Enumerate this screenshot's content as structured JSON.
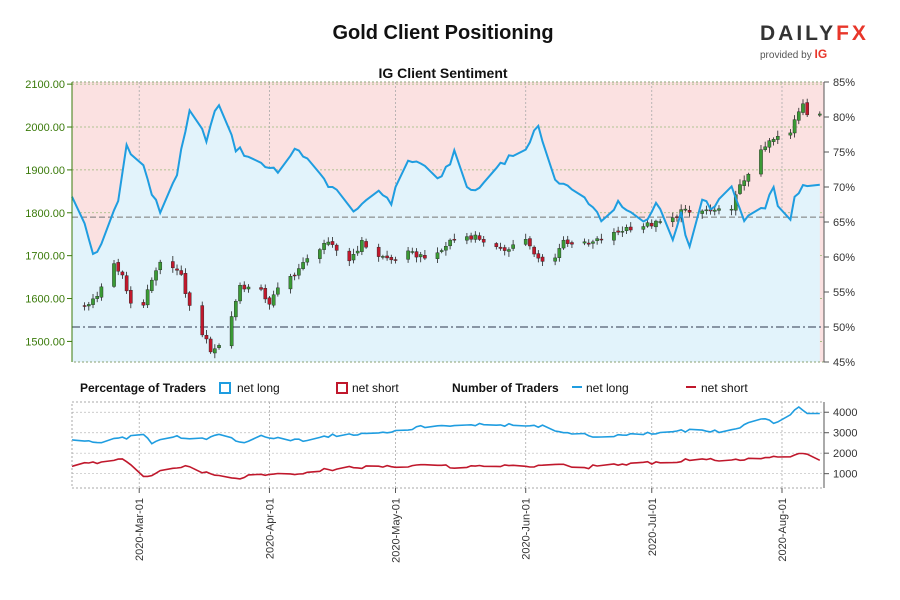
{
  "title": "Gold Client Positioning",
  "logo": {
    "word": "DAILY",
    "word_accent": "FX",
    "sub": "provided by",
    "badge": "IG"
  },
  "colors": {
    "net_long": "#1f9de0",
    "net_short": "#c0182c",
    "candle_up": "#3a9a35",
    "candle_down": "#c0182c",
    "price_axis": "#3a7a0a",
    "region_long": "#e2f3fb",
    "region_short": "#fbe1e1"
  },
  "chart_data": [
    {
      "type": "candlestick+line",
      "title": "IG Client Sentiment",
      "left_axis": {
        "ticks": [
          "1500.00",
          "1600.00",
          "1700.00",
          "1800.00",
          "1900.00",
          "2000.00",
          "2100.00"
        ],
        "range": [
          1452,
          2105
        ]
      },
      "right_axis": {
        "ticks": [
          "45%",
          "50%",
          "55%",
          "60%",
          "65%",
          "70%",
          "75%",
          "80%",
          "85%"
        ],
        "range": [
          45,
          85
        ]
      },
      "reference_lines": {
        "price": 1790,
        "percent": 50
      },
      "price_anchors": [
        [
          "2020-02-15",
          1578
        ],
        [
          "2020-02-18",
          1586
        ],
        [
          "2020-02-20",
          1612
        ],
        [
          "2020-02-22",
          1640
        ],
        [
          "2020-02-24",
          1680
        ],
        [
          "2020-02-26",
          1650
        ],
        [
          "2020-02-28",
          1590
        ],
        [
          "2020-03-02",
          1588
        ],
        [
          "2020-03-04",
          1640
        ],
        [
          "2020-03-06",
          1680
        ],
        [
          "2020-03-09",
          1678
        ],
        [
          "2020-03-11",
          1650
        ],
        [
          "2020-03-13",
          1580
        ],
        [
          "2020-03-16",
          1520
        ],
        [
          "2020-03-18",
          1480
        ],
        [
          "2020-03-20",
          1490
        ],
        [
          "2020-03-23",
          1560
        ],
        [
          "2020-03-25",
          1630
        ],
        [
          "2020-03-27",
          1625
        ],
        [
          "2020-03-30",
          1615
        ],
        [
          "2020-04-01",
          1590
        ],
        [
          "2020-04-03",
          1620
        ],
        [
          "2020-04-07",
          1660
        ],
        [
          "2020-04-10",
          1690
        ],
        [
          "2020-04-14",
          1730
        ],
        [
          "2020-04-16",
          1720
        ],
        [
          "2020-04-20",
          1690
        ],
        [
          "2020-04-23",
          1730
        ],
        [
          "2020-04-27",
          1700
        ],
        [
          "2020-04-30",
          1690
        ],
        [
          "2020-05-04",
          1705
        ],
        [
          "2020-05-07",
          1700
        ],
        [
          "2020-05-11",
          1700
        ],
        [
          "2020-05-14",
          1735
        ],
        [
          "2020-05-18",
          1745
        ],
        [
          "2020-05-20",
          1745
        ],
        [
          "2020-05-22",
          1735
        ],
        [
          "2020-05-26",
          1710
        ],
        [
          "2020-05-28",
          1720
        ],
        [
          "2020-06-01",
          1740
        ],
        [
          "2020-06-03",
          1700
        ],
        [
          "2020-06-05",
          1685
        ],
        [
          "2020-06-08",
          1700
        ],
        [
          "2020-06-10",
          1735
        ],
        [
          "2020-06-12",
          1730
        ],
        [
          "2020-06-16",
          1725
        ],
        [
          "2020-06-19",
          1740
        ],
        [
          "2020-06-22",
          1750
        ],
        [
          "2020-06-25",
          1765
        ],
        [
          "2020-06-29",
          1770
        ],
        [
          "2020-07-02",
          1775
        ],
        [
          "2020-07-06",
          1785
        ],
        [
          "2020-07-08",
          1805
        ],
        [
          "2020-07-10",
          1800
        ],
        [
          "2020-07-14",
          1805
        ],
        [
          "2020-07-16",
          1800
        ],
        [
          "2020-07-20",
          1815
        ],
        [
          "2020-07-22",
          1860
        ],
        [
          "2020-07-24",
          1895
        ],
        [
          "2020-07-27",
          1940
        ],
        [
          "2020-07-29",
          1965
        ],
        [
          "2020-07-31",
          1975
        ],
        [
          "2020-08-03",
          1985
        ],
        [
          "2020-08-04",
          2020
        ],
        [
          "2020-08-06",
          2060
        ],
        [
          "2020-08-07",
          2030
        ],
        [
          "2020-08-10",
          2025
        ]
      ],
      "net_long_pct_anchors": [
        [
          "2020-02-14",
          69.0
        ],
        [
          "2020-02-17",
          64.5
        ],
        [
          "2020-02-19",
          60.5
        ],
        [
          "2020-02-21",
          61.5
        ],
        [
          "2020-02-25",
          68.0
        ],
        [
          "2020-02-27",
          76.0
        ],
        [
          "2020-03-02",
          73.0
        ],
        [
          "2020-03-04",
          69.0
        ],
        [
          "2020-03-06",
          66.5
        ],
        [
          "2020-03-10",
          72.0
        ],
        [
          "2020-03-13",
          80.5
        ],
        [
          "2020-03-17",
          77.0
        ],
        [
          "2020-03-20",
          82.0
        ],
        [
          "2020-03-24",
          75.5
        ],
        [
          "2020-03-27",
          74.5
        ],
        [
          "2020-03-31",
          73.0
        ],
        [
          "2020-04-03",
          72.5
        ],
        [
          "2020-04-08",
          75.5
        ],
        [
          "2020-04-12",
          72.0
        ],
        [
          "2020-04-16",
          70.0
        ],
        [
          "2020-04-20",
          67.0
        ],
        [
          "2020-04-23",
          67.0
        ],
        [
          "2020-04-27",
          69.5
        ],
        [
          "2020-04-30",
          68.0
        ],
        [
          "2020-05-04",
          74.0
        ],
        [
          "2020-05-08",
          73.0
        ],
        [
          "2020-05-12",
          71.0
        ],
        [
          "2020-05-15",
          75.0
        ],
        [
          "2020-05-19",
          69.0
        ],
        [
          "2020-05-22",
          70.5
        ],
        [
          "2020-05-26",
          73.5
        ],
        [
          "2020-05-30",
          75.0
        ],
        [
          "2020-06-02",
          76.0
        ],
        [
          "2020-06-04",
          79.0
        ],
        [
          "2020-06-08",
          71.0
        ],
        [
          "2020-06-12",
          69.5
        ],
        [
          "2020-06-16",
          68.0
        ],
        [
          "2020-06-19",
          65.5
        ],
        [
          "2020-06-23",
          67.5
        ],
        [
          "2020-06-26",
          66.0
        ],
        [
          "2020-06-30",
          65.0
        ],
        [
          "2020-07-02",
          68.0
        ],
        [
          "2020-07-06",
          63.0
        ],
        [
          "2020-07-08",
          66.0
        ],
        [
          "2020-07-10",
          61.0
        ],
        [
          "2020-07-13",
          68.0
        ],
        [
          "2020-07-16",
          67.0
        ],
        [
          "2020-07-20",
          70.0
        ],
        [
          "2020-07-23",
          65.0
        ],
        [
          "2020-07-27",
          66.5
        ],
        [
          "2020-07-30",
          69.5
        ],
        [
          "2020-08-02",
          63.5
        ],
        [
          "2020-08-04",
          68.0
        ],
        [
          "2020-08-06",
          70.0
        ],
        [
          "2020-08-10",
          70.0
        ]
      ]
    },
    {
      "type": "line",
      "title": "",
      "right_axis": {
        "ticks": [
          "1000",
          "2000",
          "3000",
          "4000"
        ],
        "range": [
          300,
          4500
        ]
      },
      "x_ticks": [
        "2020-Mar-01",
        "2020-Apr-01",
        "2020-May-01",
        "2020-Jun-01",
        "2020-Jul-01",
        "2020-Aug-01"
      ],
      "x_range": [
        "2020-02-14",
        "2020-08-11"
      ],
      "legend": {
        "percentage_label": "Percentage of Traders",
        "number_label": "Number of Traders",
        "net_long": "net long",
        "net_short": "net short"
      },
      "series": [
        {
          "name": "net long",
          "anchors": [
            [
              "2020-02-14",
              2700
            ],
            [
              "2020-02-20",
              2500
            ],
            [
              "2020-02-27",
              2750
            ],
            [
              "2020-03-01",
              3150
            ],
            [
              "2020-03-04",
              2500
            ],
            [
              "2020-03-10",
              2850
            ],
            [
              "2020-03-15",
              2600
            ],
            [
              "2020-03-20",
              2950
            ],
            [
              "2020-03-25",
              2500
            ],
            [
              "2020-03-30",
              2850
            ],
            [
              "2020-04-03",
              2700
            ],
            [
              "2020-04-10",
              2650
            ],
            [
              "2020-04-17",
              2900
            ],
            [
              "2020-04-25",
              3000
            ],
            [
              "2020-05-01",
              3100
            ],
            [
              "2020-05-08",
              3300
            ],
            [
              "2020-05-15",
              3300
            ],
            [
              "2020-05-22",
              3450
            ],
            [
              "2020-05-29",
              3350
            ],
            [
              "2020-06-05",
              3300
            ],
            [
              "2020-06-12",
              2950
            ],
            [
              "2020-06-19",
              2800
            ],
            [
              "2020-06-26",
              2900
            ],
            [
              "2020-07-03",
              3000
            ],
            [
              "2020-07-10",
              3100
            ],
            [
              "2020-07-17",
              3050
            ],
            [
              "2020-07-22",
              3300
            ],
            [
              "2020-07-26",
              3800
            ],
            [
              "2020-07-30",
              3500
            ],
            [
              "2020-08-02",
              3700
            ],
            [
              "2020-08-05",
              4200
            ],
            [
              "2020-08-08",
              3850
            ],
            [
              "2020-08-10",
              3900
            ]
          ]
        },
        {
          "name": "net short",
          "anchors": [
            [
              "2020-02-14",
              1400
            ],
            [
              "2020-02-20",
              1550
            ],
            [
              "2020-02-25",
              1750
            ],
            [
              "2020-02-28",
              1500
            ],
            [
              "2020-03-02",
              800
            ],
            [
              "2020-03-07",
              1150
            ],
            [
              "2020-03-12",
              1350
            ],
            [
              "2020-03-17",
              1050
            ],
            [
              "2020-03-22",
              700
            ],
            [
              "2020-03-27",
              900
            ],
            [
              "2020-04-01",
              900
            ],
            [
              "2020-04-08",
              1000
            ],
            [
              "2020-04-15",
              1200
            ],
            [
              "2020-04-22",
              1300
            ],
            [
              "2020-05-01",
              1350
            ],
            [
              "2020-05-10",
              1400
            ],
            [
              "2020-05-18",
              1300
            ],
            [
              "2020-05-25",
              1400
            ],
            [
              "2020-06-01",
              1350
            ],
            [
              "2020-06-08",
              1500
            ],
            [
              "2020-06-15",
              1300
            ],
            [
              "2020-06-22",
              1450
            ],
            [
              "2020-06-29",
              1500
            ],
            [
              "2020-07-06",
              1600
            ],
            [
              "2020-07-13",
              1700
            ],
            [
              "2020-07-20",
              1650
            ],
            [
              "2020-07-27",
              1750
            ],
            [
              "2020-08-03",
              1800
            ],
            [
              "2020-08-06",
              2000
            ],
            [
              "2020-08-10",
              1700
            ]
          ]
        }
      ]
    }
  ]
}
